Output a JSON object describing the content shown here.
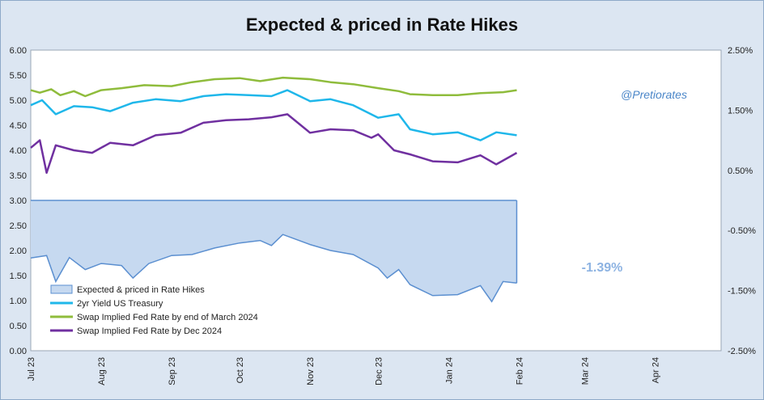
{
  "chart_data": {
    "type": "line",
    "title": "Expected & priced in Rate Hikes",
    "watermark": "@Pretiorates",
    "annotation": "-1.39%",
    "y_left": {
      "lim": [
        0,
        6
      ],
      "ticks": [
        "0.00",
        "0.50",
        "1.00",
        "1.50",
        "2.00",
        "2.50",
        "3.00",
        "3.50",
        "4.00",
        "4.50",
        "5.00",
        "5.50",
        "6.00"
      ]
    },
    "y_right": {
      "lim": [
        -2.5,
        2.5
      ],
      "ticks": [
        "-2.50%",
        "-1.50%",
        "-0.50%",
        "0.50%",
        "1.50%",
        "2.50%"
      ]
    },
    "x_ticks": [
      "Jul 23",
      "Aug 23",
      "Sep 23",
      "Oct 23",
      "Nov 23",
      "Dec 23",
      "Jan 24",
      "Feb 24",
      "Mar 24",
      "Apr 24"
    ],
    "x_range": [
      "2023-07-01",
      "2024-04-30"
    ],
    "grid": false,
    "legend_position": "bottom-left",
    "colors": {
      "area_fill": "#c6d9f0",
      "area_line": "#5b8fd0",
      "yield2": "#1fb7ea",
      "swap_march": "#8fbc3c",
      "swap_dec": "#7030a0",
      "annotation": "#8db3e2",
      "watermark": "#4a86c8"
    },
    "legend": [
      {
        "label": "Expected & priced in Rate Hikes",
        "kind": "area"
      },
      {
        "label": "2yr Yield US Treasury",
        "kind": "yield2"
      },
      {
        "label": "Swap Implied Fed Rate by end of March 2024",
        "kind": "swap_march"
      },
      {
        "label": "Swap Implied Fed Rate by Dec 2024",
        "kind": "swap_dec"
      }
    ],
    "series": [
      {
        "name": "Swap Implied Fed Rate by end of March 2024",
        "axis": "left",
        "kind": "swap_march",
        "points": [
          [
            "2023-07-01",
            5.2
          ],
          [
            "2023-07-05",
            5.15
          ],
          [
            "2023-07-10",
            5.22
          ],
          [
            "2023-07-14",
            5.1
          ],
          [
            "2023-07-20",
            5.18
          ],
          [
            "2023-07-25",
            5.08
          ],
          [
            "2023-08-01",
            5.2
          ],
          [
            "2023-08-10",
            5.24
          ],
          [
            "2023-08-20",
            5.3
          ],
          [
            "2023-09-01",
            5.28
          ],
          [
            "2023-09-10",
            5.36
          ],
          [
            "2023-09-20",
            5.42
          ],
          [
            "2023-10-01",
            5.44
          ],
          [
            "2023-10-10",
            5.38
          ],
          [
            "2023-10-20",
            5.45
          ],
          [
            "2023-11-01",
            5.42
          ],
          [
            "2023-11-10",
            5.36
          ],
          [
            "2023-11-20",
            5.32
          ],
          [
            "2023-12-01",
            5.24
          ],
          [
            "2023-12-10",
            5.18
          ],
          [
            "2023-12-15",
            5.12
          ],
          [
            "2023-12-25",
            5.1
          ],
          [
            "2024-01-05",
            5.1
          ],
          [
            "2024-01-15",
            5.14
          ],
          [
            "2024-01-25",
            5.16
          ],
          [
            "2024-01-31",
            5.2
          ]
        ]
      },
      {
        "name": "2yr Yield US Treasury",
        "axis": "left",
        "kind": "yield2",
        "points": [
          [
            "2023-07-01",
            4.9
          ],
          [
            "2023-07-06",
            5.0
          ],
          [
            "2023-07-12",
            4.72
          ],
          [
            "2023-07-20",
            4.88
          ],
          [
            "2023-07-28",
            4.86
          ],
          [
            "2023-08-05",
            4.78
          ],
          [
            "2023-08-15",
            4.95
          ],
          [
            "2023-08-25",
            5.02
          ],
          [
            "2023-09-05",
            4.98
          ],
          [
            "2023-09-15",
            5.08
          ],
          [
            "2023-09-25",
            5.12
          ],
          [
            "2023-10-05",
            5.1
          ],
          [
            "2023-10-15",
            5.08
          ],
          [
            "2023-10-22",
            5.2
          ],
          [
            "2023-11-01",
            4.98
          ],
          [
            "2023-11-10",
            5.02
          ],
          [
            "2023-11-20",
            4.9
          ],
          [
            "2023-12-01",
            4.65
          ],
          [
            "2023-12-10",
            4.72
          ],
          [
            "2023-12-15",
            4.42
          ],
          [
            "2023-12-25",
            4.32
          ],
          [
            "2024-01-05",
            4.36
          ],
          [
            "2024-01-15",
            4.2
          ],
          [
            "2024-01-22",
            4.36
          ],
          [
            "2024-01-31",
            4.3
          ]
        ]
      },
      {
        "name": "Swap Implied Fed Rate by Dec 2024",
        "axis": "left",
        "kind": "swap_dec",
        "points": [
          [
            "2023-07-01",
            4.05
          ],
          [
            "2023-07-05",
            4.2
          ],
          [
            "2023-07-08",
            3.55
          ],
          [
            "2023-07-12",
            4.1
          ],
          [
            "2023-07-20",
            4.0
          ],
          [
            "2023-07-28",
            3.95
          ],
          [
            "2023-08-05",
            4.15
          ],
          [
            "2023-08-15",
            4.1
          ],
          [
            "2023-08-25",
            4.3
          ],
          [
            "2023-09-05",
            4.35
          ],
          [
            "2023-09-15",
            4.55
          ],
          [
            "2023-09-25",
            4.6
          ],
          [
            "2023-10-05",
            4.62
          ],
          [
            "2023-10-15",
            4.66
          ],
          [
            "2023-10-22",
            4.72
          ],
          [
            "2023-11-01",
            4.35
          ],
          [
            "2023-11-10",
            4.42
          ],
          [
            "2023-11-20",
            4.4
          ],
          [
            "2023-11-28",
            4.25
          ],
          [
            "2023-12-01",
            4.32
          ],
          [
            "2023-12-08",
            4.0
          ],
          [
            "2023-12-15",
            3.92
          ],
          [
            "2023-12-25",
            3.78
          ],
          [
            "2024-01-05",
            3.76
          ],
          [
            "2024-01-15",
            3.9
          ],
          [
            "2024-01-22",
            3.72
          ],
          [
            "2024-01-31",
            3.95
          ]
        ]
      },
      {
        "name": "Expected & priced in Rate Hikes",
        "axis": "left",
        "kind": "area",
        "baseline": 3.0,
        "points": [
          [
            "2023-07-01",
            1.85
          ],
          [
            "2023-07-08",
            1.9
          ],
          [
            "2023-07-12",
            1.38
          ],
          [
            "2023-07-18",
            1.86
          ],
          [
            "2023-07-25",
            1.62
          ],
          [
            "2023-08-01",
            1.74
          ],
          [
            "2023-08-10",
            1.7
          ],
          [
            "2023-08-15",
            1.45
          ],
          [
            "2023-08-22",
            1.74
          ],
          [
            "2023-09-01",
            1.9
          ],
          [
            "2023-09-10",
            1.92
          ],
          [
            "2023-09-20",
            2.05
          ],
          [
            "2023-10-01",
            2.15
          ],
          [
            "2023-10-10",
            2.2
          ],
          [
            "2023-10-15",
            2.1
          ],
          [
            "2023-10-20",
            2.32
          ],
          [
            "2023-11-01",
            2.12
          ],
          [
            "2023-11-10",
            2.0
          ],
          [
            "2023-11-20",
            1.92
          ],
          [
            "2023-12-01",
            1.65
          ],
          [
            "2023-12-05",
            1.45
          ],
          [
            "2023-12-10",
            1.62
          ],
          [
            "2023-12-15",
            1.32
          ],
          [
            "2023-12-25",
            1.1
          ],
          [
            "2024-01-05",
            1.12
          ],
          [
            "2024-01-15",
            1.3
          ],
          [
            "2024-01-20",
            0.98
          ],
          [
            "2024-01-25",
            1.38
          ],
          [
            "2024-01-31",
            1.35
          ]
        ]
      }
    ]
  }
}
